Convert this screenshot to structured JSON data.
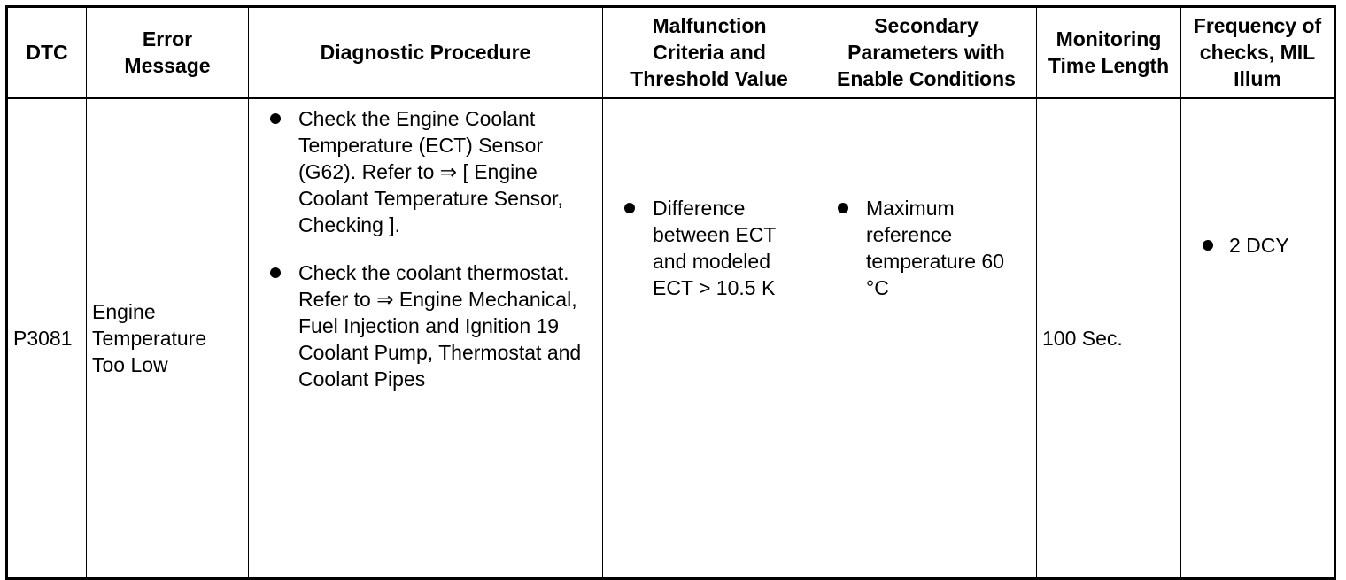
{
  "table": {
    "headers": {
      "dtc": "DTC",
      "error_message": "Error Message",
      "diagnostic_procedure": "Diagnostic Procedure",
      "malfunction_criteria": "Malfunction Criteria and Threshold Value",
      "secondary_parameters": "Secondary Parameters with Enable Conditions",
      "monitoring_time": "Monitoring Time Length",
      "frequency": "Frequency of checks, MIL Illum"
    },
    "rows": [
      {
        "dtc": "P3081",
        "error_message": "Engine Temperature Too Low",
        "diagnostic_procedure": [
          "Check the Engine Coolant Temperature (ECT) Sensor (G62). Refer to ⇒ [ Engine Coolant Temperature Sensor, Checking ].",
          "Check the coolant thermostat. Refer to ⇒ Engine Mechanical, Fuel Injection and Ignition 19 Coolant Pump, Thermostat and Coolant Pipes"
        ],
        "malfunction_criteria": [
          "Difference between ECT and modeled ECT > 10.5 K"
        ],
        "secondary_parameters": [
          "Maximum reference temperature 60 °C"
        ],
        "monitoring_time": "100 Sec.",
        "frequency": [
          "2 DCY"
        ]
      }
    ]
  }
}
